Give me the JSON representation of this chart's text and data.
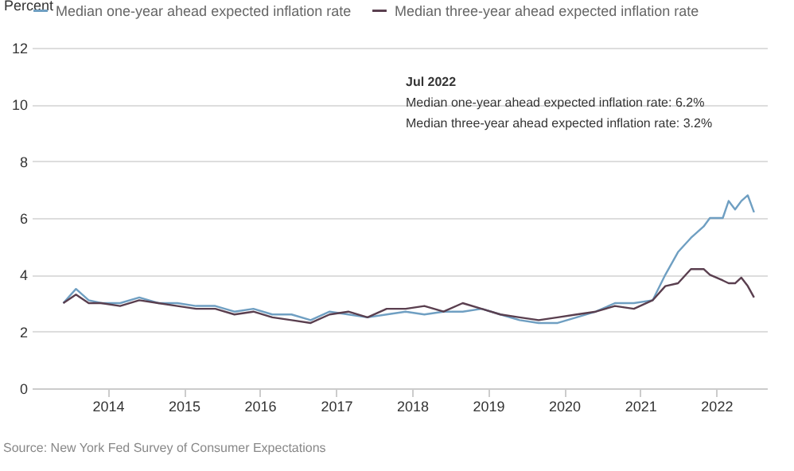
{
  "chart_data": {
    "type": "line",
    "ylabel": "Percent",
    "x": [
      "2013-06",
      "2013-08",
      "2013-10",
      "2013-12",
      "2014-03",
      "2014-06",
      "2014-09",
      "2014-12",
      "2015-03",
      "2015-06",
      "2015-09",
      "2015-12",
      "2016-03",
      "2016-06",
      "2016-09",
      "2016-12",
      "2017-03",
      "2017-06",
      "2017-09",
      "2017-12",
      "2018-03",
      "2018-06",
      "2018-09",
      "2018-12",
      "2019-03",
      "2019-06",
      "2019-09",
      "2019-12",
      "2020-03",
      "2020-06",
      "2020-09",
      "2020-12",
      "2021-03",
      "2021-05",
      "2021-07",
      "2021-09",
      "2021-11",
      "2021-12",
      "2022-02",
      "2022-03",
      "2022-04",
      "2022-05",
      "2022-06",
      "2022-07"
    ],
    "series": [
      {
        "name": "Median one-year ahead expected inflation rate",
        "color": "#6f9fc2",
        "values": [
          3.0,
          3.5,
          3.1,
          3.0,
          3.0,
          3.2,
          3.0,
          3.0,
          2.9,
          2.9,
          2.7,
          2.8,
          2.6,
          2.6,
          2.4,
          2.7,
          2.6,
          2.5,
          2.6,
          2.7,
          2.6,
          2.7,
          2.7,
          2.8,
          2.6,
          2.4,
          2.3,
          2.3,
          2.5,
          2.7,
          3.0,
          3.0,
          3.1,
          4.0,
          4.8,
          5.3,
          5.7,
          6.0,
          6.0,
          6.6,
          6.3,
          6.6,
          6.8,
          6.2
        ]
      },
      {
        "name": "Median three-year ahead expected inflation rate",
        "color": "#5a3f4f",
        "values": [
          3.0,
          3.3,
          3.0,
          3.0,
          2.9,
          3.1,
          3.0,
          2.9,
          2.8,
          2.8,
          2.6,
          2.7,
          2.5,
          2.4,
          2.3,
          2.6,
          2.7,
          2.5,
          2.8,
          2.8,
          2.9,
          2.7,
          3.0,
          2.8,
          2.6,
          2.5,
          2.4,
          2.5,
          2.6,
          2.7,
          2.9,
          2.8,
          3.1,
          3.6,
          3.7,
          4.2,
          4.2,
          4.0,
          3.8,
          3.7,
          3.7,
          3.9,
          3.6,
          3.2
        ]
      }
    ],
    "xticks": [
      {
        "value": "2014",
        "label": "2014"
      },
      {
        "value": "2015",
        "label": "2015"
      },
      {
        "value": "2016",
        "label": "2016"
      },
      {
        "value": "2017",
        "label": "2017"
      },
      {
        "value": "2018",
        "label": "2018"
      },
      {
        "value": "2019",
        "label": "2019"
      },
      {
        "value": "2020",
        "label": "2020"
      },
      {
        "value": "2021",
        "label": "2021"
      },
      {
        "value": "2022",
        "label": "2022"
      }
    ],
    "xlim": [
      "2013-01",
      "2022-09"
    ],
    "ylim": [
      0,
      12
    ],
    "yticks": [
      0,
      2,
      4,
      6,
      8,
      10,
      12
    ],
    "grid": "y",
    "legend": "top",
    "annotations": [
      "Jul 2022",
      "Median one-year ahead expected inflation rate: 6.2%",
      "Median three-year ahead expected inflation rate: 3.2%",
      "Source: New York Fed Survey of Consumer Expectations"
    ]
  }
}
